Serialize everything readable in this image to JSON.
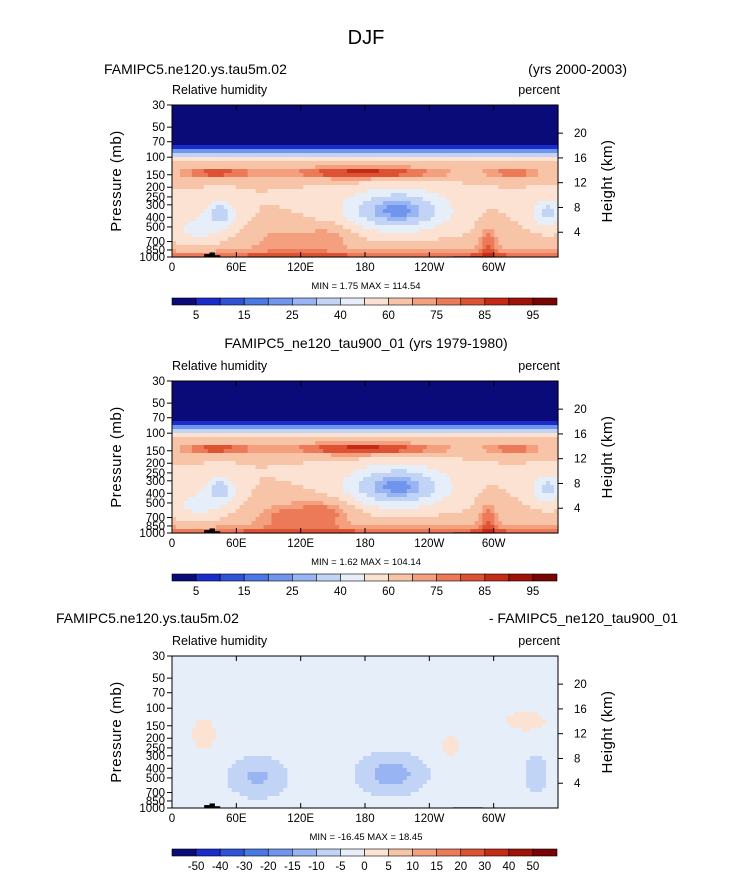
{
  "figure": {
    "season": "DJF"
  },
  "panels": [
    {
      "title_left": "FAMIPC5.ne120.ys.tau5m.02",
      "title_right": "(yrs 2000-2003)",
      "title_center": "",
      "sub_left": "Relative humidity",
      "sub_right": "percent",
      "minmax": "MIN =    1.75   MAX = 114.54",
      "kind": "full"
    },
    {
      "title_left": "",
      "title_right": "",
      "title_center": "FAMIPC5_ne120_tau900_01 (yrs 1979-1980)",
      "sub_left": "Relative humidity",
      "sub_right": "percent",
      "minmax": "MIN =    1.62   MAX = 104.14",
      "kind": "full"
    },
    {
      "title_left": "FAMIPC5.ne120.ys.tau5m.02",
      "title_right": "- FAMIPC5_ne120_tau900_01",
      "title_center": "",
      "sub_left": "Relative humidity",
      "sub_right": "percent",
      "minmax": "MIN = -16.45   MAX =  18.45",
      "kind": "diff"
    }
  ],
  "axes": {
    "ylabel_left": "Pressure  (mb)",
    "ylabel_right": "Height  (km)",
    "x_ticks": [
      "0",
      "60E",
      "120E",
      "180",
      "120W",
      "60W"
    ],
    "x_tick_lon": [
      0,
      60,
      120,
      180,
      240,
      300
    ],
    "x_range": [
      0,
      360
    ],
    "p_ticks": [
      "30",
      "50",
      "70",
      "100",
      "150",
      "200",
      "250",
      "300",
      "400",
      "500",
      "700",
      "850",
      "1000"
    ],
    "p_tick_values": [
      30,
      50,
      70,
      100,
      150,
      200,
      250,
      300,
      400,
      500,
      700,
      850,
      1000
    ],
    "p_range": [
      30,
      1000
    ],
    "h_ticks": [
      "20",
      "16",
      "12",
      "8",
      "4"
    ],
    "h_tick_values": [
      20,
      16,
      12,
      8,
      4
    ]
  },
  "colorbars": {
    "full": {
      "labels": [
        "5",
        "15",
        "25",
        "40",
        "60",
        "75",
        "85",
        "95"
      ],
      "label_after_box": [
        1,
        3,
        5,
        7,
        9,
        11,
        13,
        15
      ],
      "colors": [
        "#0a0a78",
        "#1a2ccc",
        "#2e52d8",
        "#4a78e4",
        "#7095ec",
        "#98b4f2",
        "#c2d4f6",
        "#e6eefa",
        "#fbe2d2",
        "#f8c4a8",
        "#f4a07e",
        "#ec7a58",
        "#dc5232",
        "#c42a16",
        "#a01208",
        "#780404"
      ]
    },
    "diff": {
      "labels": [
        "-50",
        "-40",
        "-30",
        "-20",
        "-15",
        "-10",
        "-5",
        "0",
        "5",
        "10",
        "15",
        "20",
        "30",
        "40",
        "50"
      ],
      "label_after_box": [
        1,
        2,
        3,
        4,
        5,
        6,
        7,
        8,
        9,
        10,
        11,
        12,
        13,
        14,
        15
      ],
      "colors": [
        "#0a0a78",
        "#1a2ccc",
        "#2e52d8",
        "#4a78e4",
        "#7095ec",
        "#98b4f2",
        "#c2d4f6",
        "#e6eefa",
        "#fbe2d2",
        "#f8c4a8",
        "#f4a07e",
        "#ec7a58",
        "#dc5232",
        "#c42a16",
        "#a01208",
        "#780404"
      ]
    }
  },
  "chart_data": [
    {
      "type": "heatmap",
      "title": "FAMIPC5.ne120.ys.tau5m.02 (yrs 2000-2003)",
      "variable": "Relative humidity",
      "units": "percent",
      "xlabel": "",
      "x_ticks": [
        "0",
        "60E",
        "120E",
        "180",
        "120W",
        "60W"
      ],
      "ylabel": "Pressure (mb)",
      "y_right_label": "Height (km)",
      "ylim": [
        1000,
        30
      ],
      "min": 1.75,
      "max": 114.54,
      "contour_levels": [
        5,
        10,
        15,
        20,
        25,
        30,
        40,
        50,
        60,
        70,
        75,
        80,
        85,
        90,
        95
      ]
    },
    {
      "type": "heatmap",
      "title": "FAMIPC5_ne120_tau900_01 (yrs 1979-1980)",
      "variable": "Relative humidity",
      "units": "percent",
      "xlabel": "",
      "x_ticks": [
        "0",
        "60E",
        "120E",
        "180",
        "120W",
        "60W"
      ],
      "ylabel": "Pressure (mb)",
      "y_right_label": "Height (km)",
      "ylim": [
        1000,
        30
      ],
      "min": 1.62,
      "max": 104.14,
      "contour_levels": [
        5,
        10,
        15,
        20,
        25,
        30,
        40,
        50,
        60,
        70,
        75,
        80,
        85,
        90,
        95
      ]
    },
    {
      "type": "heatmap",
      "title": "FAMIPC5.ne120.ys.tau5m.02 - FAMIPC5_ne120_tau900_01",
      "variable": "Relative humidity",
      "units": "percent",
      "xlabel": "",
      "x_ticks": [
        "0",
        "60E",
        "120E",
        "180",
        "120W",
        "60W"
      ],
      "ylabel": "Pressure (mb)",
      "y_right_label": "Height (km)",
      "ylim": [
        1000,
        30
      ],
      "min": -16.45,
      "max": 18.45,
      "contour_levels": [
        -50,
        -40,
        -30,
        -20,
        -15,
        -10,
        -5,
        0,
        5,
        10,
        15,
        20,
        30,
        40,
        50
      ]
    }
  ]
}
